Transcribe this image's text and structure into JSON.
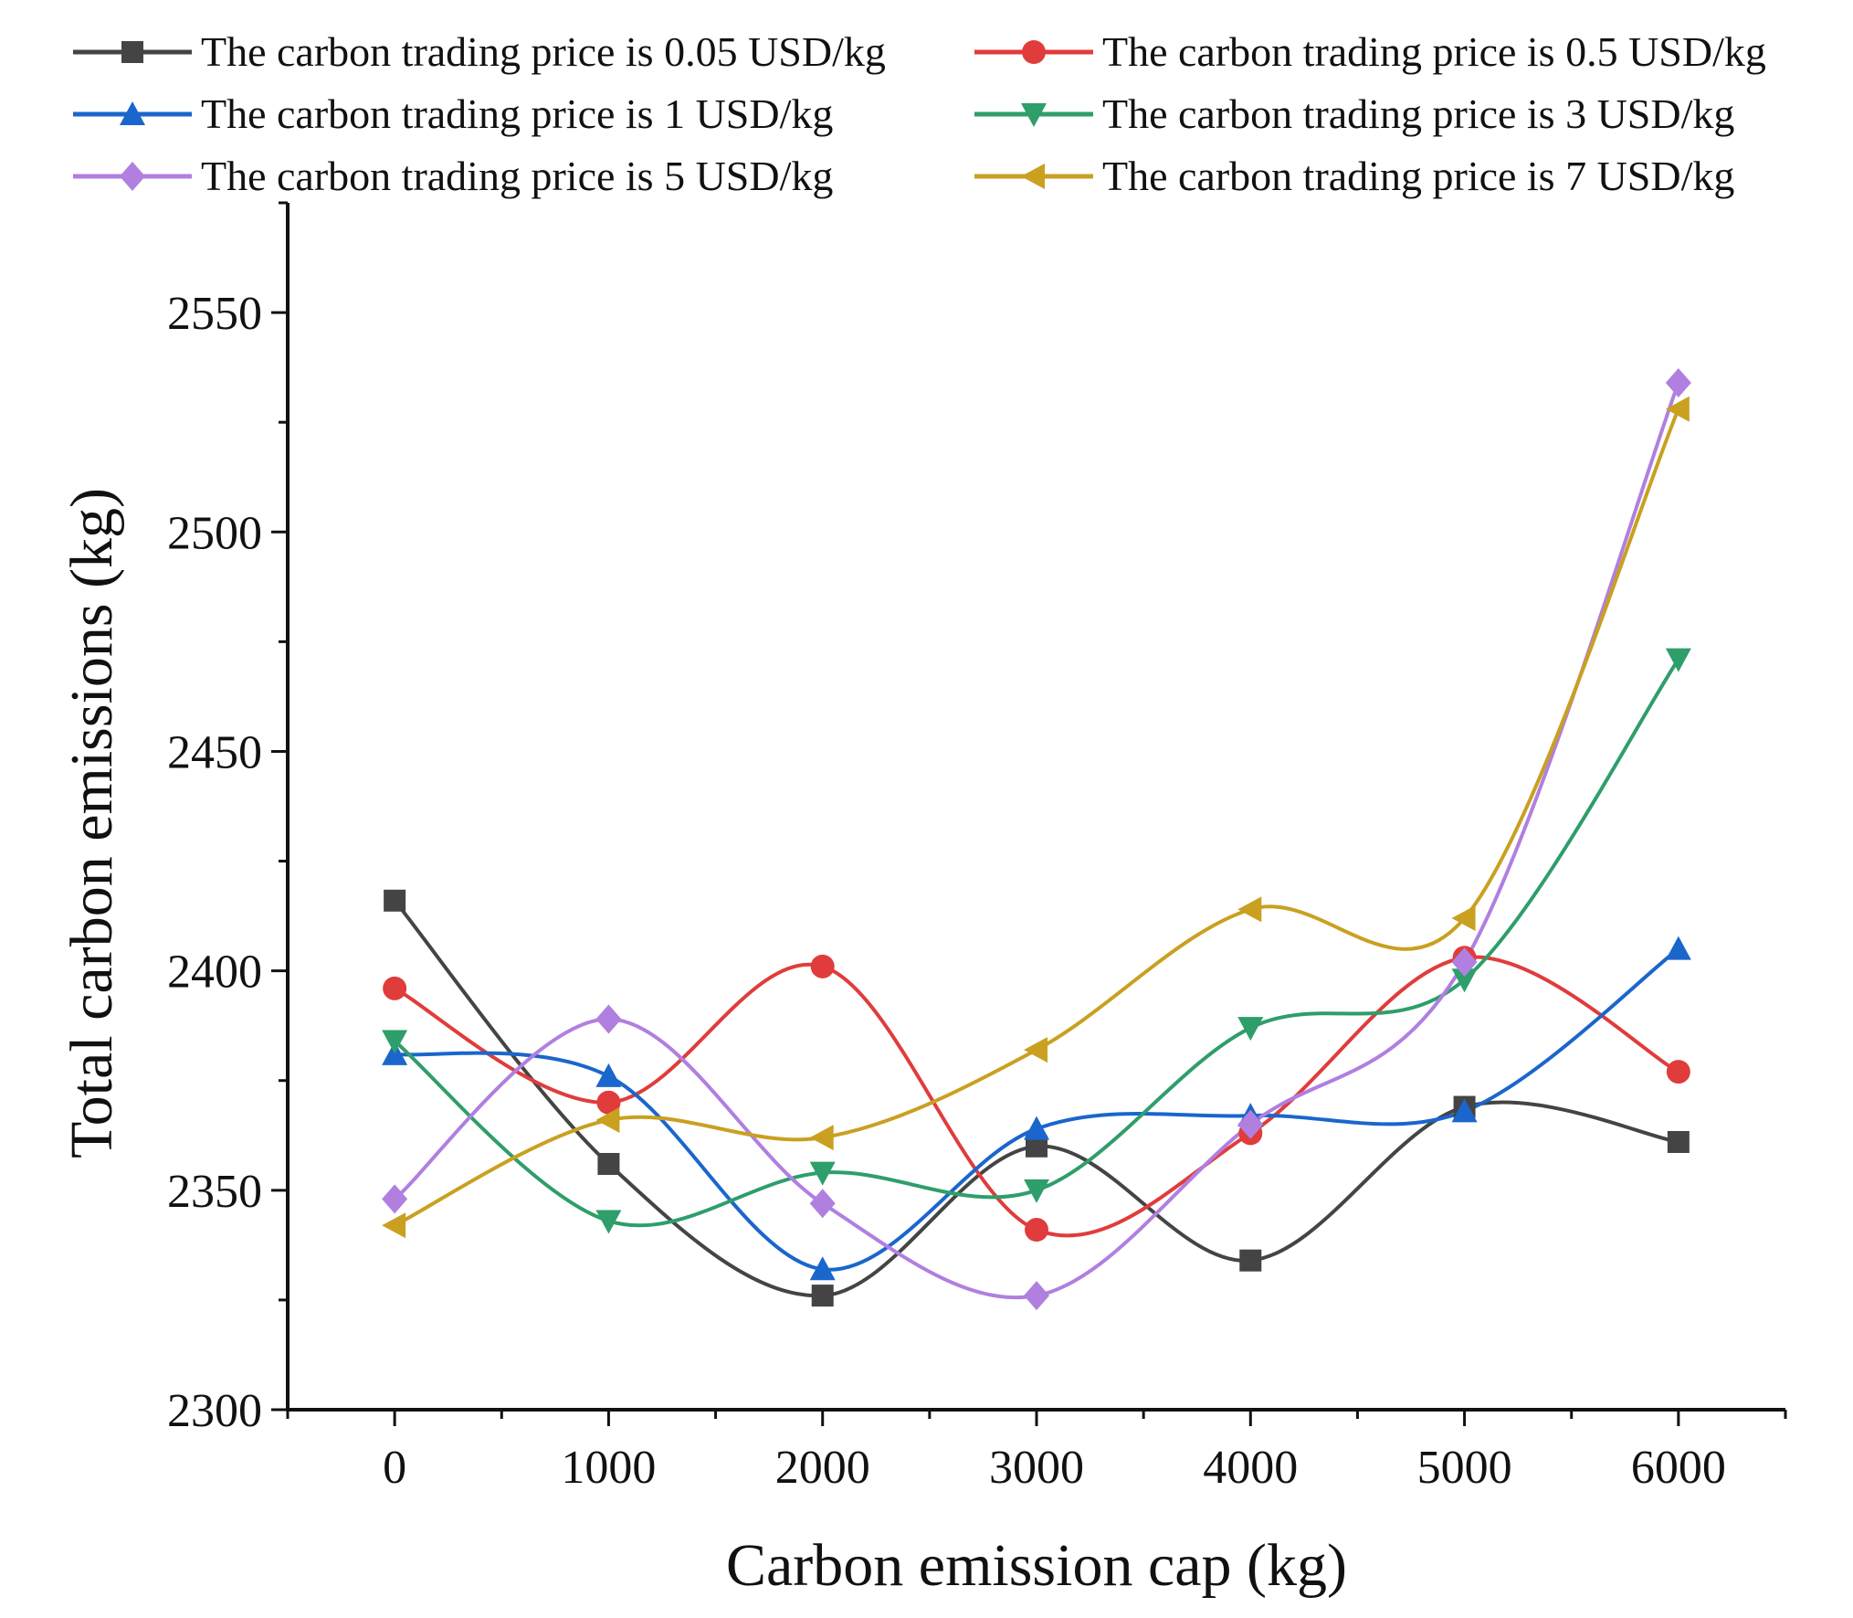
{
  "chart_data": {
    "type": "line",
    "smooth": true,
    "title": "",
    "xlabel": "Carbon emission cap (kg)",
    "ylabel": "Total carbon emissions (kg)",
    "x": [
      0,
      1000,
      2000,
      3000,
      4000,
      5000,
      6000
    ],
    "xticks": [
      "0",
      "1000",
      "2000",
      "3000",
      "4000",
      "5000",
      "6000"
    ],
    "xlim": [
      -500,
      6500
    ],
    "ylim": [
      2300,
      2575
    ],
    "yticks": [
      "2300",
      "2350",
      "2400",
      "2450",
      "2500",
      "2550"
    ],
    "grid": false,
    "legend_position": "top",
    "series": [
      {
        "name": "The carbon trading price is 0.05 USD/kg",
        "color": "#444444",
        "marker": "square",
        "values": [
          2416,
          2356,
          2326,
          2360,
          2334,
          2369,
          2361
        ]
      },
      {
        "name": "The carbon trading price is 0.5 USD/kg",
        "color": "#e03c3c",
        "marker": "circle",
        "values": [
          2396,
          2370,
          2401,
          2341,
          2363,
          2403,
          2377
        ]
      },
      {
        "name": "The carbon trading price is 1 USD/kg",
        "color": "#1a66cc",
        "marker": "triangle-up",
        "values": [
          2381,
          2376,
          2332,
          2364,
          2367,
          2368,
          2405
        ]
      },
      {
        "name": "The carbon trading price is 3 USD/kg",
        "color": "#2e9e6a",
        "marker": "triangle-down",
        "values": [
          2384,
          2343,
          2354,
          2350,
          2387,
          2398,
          2471
        ]
      },
      {
        "name": "The carbon trading price is 5 USD/kg",
        "color": "#b07fe0",
        "marker": "diamond",
        "values": [
          2348,
          2389,
          2347,
          2326,
          2365,
          2402,
          2534
        ]
      },
      {
        "name": "The carbon trading price is 7 USD/kg",
        "color": "#c9a020",
        "marker": "triangle-left",
        "values": [
          2342,
          2366,
          2362,
          2382,
          2414,
          2412,
          2528
        ]
      }
    ]
  }
}
